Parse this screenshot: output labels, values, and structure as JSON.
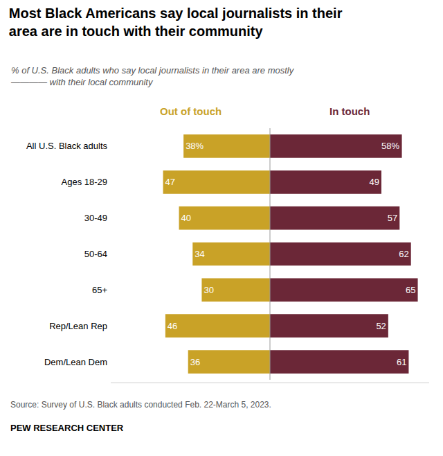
{
  "chart_data": {
    "type": "bar",
    "orientation": "horizontal",
    "title": "Most Black Americans say local journalists in their\narea are in touch with their community",
    "subtitle": "% of U.S. Black adults who say local journalists in their area are mostly\n———— with their local community",
    "categories": [
      "All U.S. Black adults",
      "Ages 18-29",
      "30-49",
      "50-64",
      "65+",
      "Rep/Lean Rep",
      "Dem/Lean Dem"
    ],
    "series": [
      {
        "name": "Out of touch",
        "color": "#C9A227",
        "values": [
          38,
          47,
          40,
          34,
          30,
          46,
          36
        ],
        "value_labels": [
          "38%",
          "47",
          "40",
          "34",
          "30",
          "46",
          "36"
        ]
      },
      {
        "name": "In touch",
        "color": "#6B2737",
        "values": [
          58,
          49,
          57,
          62,
          65,
          52,
          61
        ],
        "value_labels": [
          "58%",
          "49",
          "57",
          "62",
          "65",
          "52",
          "61"
        ]
      }
    ],
    "xlim": [
      0,
      70
    ],
    "tick_labels": "y",
    "grid": false,
    "data_labels": true,
    "annotations": [
      "Source: Survey of U.S. Black adults conducted Feb. 22-March 5, 2023.",
      "PEW RESEARCH CENTER"
    ]
  }
}
